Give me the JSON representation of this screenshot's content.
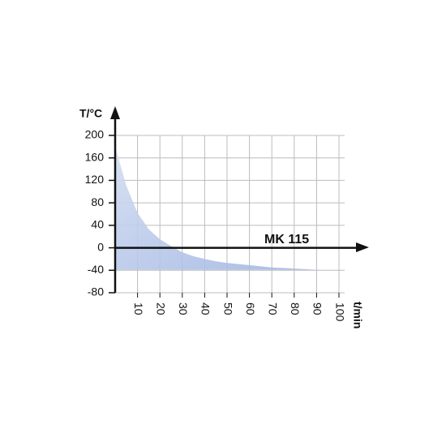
{
  "chart_data": {
    "type": "area",
    "y_label": "T/°C",
    "x_label": "t/min",
    "annotation": "MK 115",
    "x": [
      0,
      5,
      10,
      15,
      20,
      25,
      30,
      35,
      40,
      45,
      50,
      55,
      60,
      65,
      70,
      75,
      80,
      85,
      90
    ],
    "values": [
      180,
      110,
      62,
      33,
      15,
      3,
      -8,
      -15,
      -20,
      -24,
      -27,
      -29,
      -31,
      -33,
      -35,
      -36,
      -37,
      -38,
      -39
    ],
    "color": "#9ab0e0",
    "xlim": [
      0,
      100
    ],
    "xticks": [
      10,
      20,
      30,
      40,
      50,
      60,
      70,
      80,
      90,
      100
    ],
    "ylim": [
      -80,
      200
    ],
    "yticks": [
      -80,
      -40,
      0,
      40,
      80,
      120,
      160,
      200
    ],
    "grid": true
  }
}
